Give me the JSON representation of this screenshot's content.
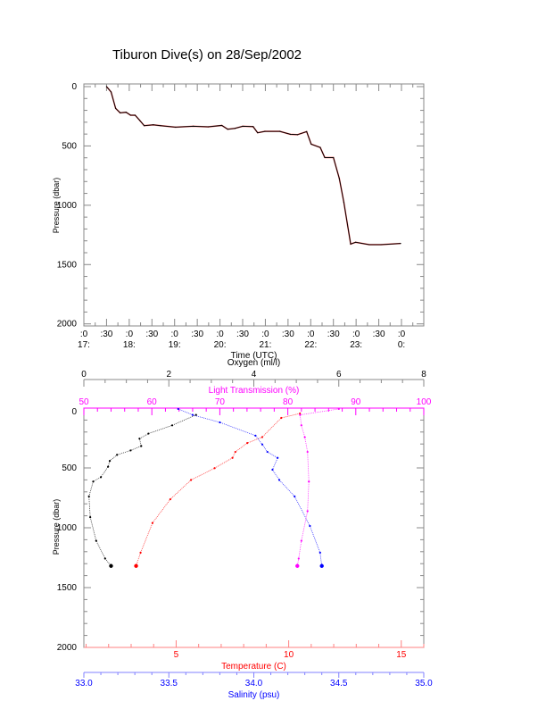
{
  "title": "Tiburon Dive(s) on 28/Sep/2002",
  "chart_data": [
    {
      "type": "line",
      "title": "Tiburon Dive(s) on 28/Sep/2002",
      "xlabel": "Time (UTC)",
      "ylabel": "Pressure (dbar)",
      "xlim_hours_after_1700": [
        0,
        7.5
      ],
      "ylim": [
        2000,
        0
      ],
      "yticks": [
        "0",
        "500",
        "1000",
        "1500",
        "2000"
      ],
      "xticks_minute": [
        ":0",
        ":30",
        ":0",
        ":30",
        ":0",
        ":30",
        ":0",
        ":30",
        ":0",
        ":30",
        ":0",
        ":30",
        ":0",
        ":30",
        ":0"
      ],
      "xticks_hour": [
        "17:",
        "18:",
        "19:",
        "20:",
        "21:",
        "22:",
        "23:",
        "0:"
      ],
      "colors": {
        "line": "#000000",
        "overlay": "#ff0000"
      },
      "series": [
        {
          "name": "Pressure",
          "x_hours": [
            0.5,
            0.6,
            0.7,
            0.8,
            0.93,
            1.03,
            1.13,
            1.23,
            1.33,
            1.53,
            1.69,
            2.02,
            2.41,
            2.74,
            3.04,
            3.17,
            3.33,
            3.5,
            3.73,
            3.83,
            3.99,
            4.32,
            4.55,
            4.71,
            4.91,
            5.01,
            5.21,
            5.31,
            5.5,
            5.63,
            5.73,
            5.88,
            5.99,
            6.29,
            6.55,
            6.98
          ],
          "y": [
            0,
            45,
            183,
            221,
            216,
            241,
            241,
            284,
            329,
            322,
            329,
            342,
            334,
            339,
            327,
            359,
            352,
            334,
            337,
            389,
            377,
            377,
            402,
            405,
            379,
            485,
            513,
            598,
            598,
            774,
            975,
            1327,
            1312,
            1332,
            1332,
            1322
          ]
        }
      ]
    },
    {
      "type": "scatter",
      "ylabel": "Pressure (dbar)",
      "ylim": [
        2000,
        0
      ],
      "yticks": [
        "0",
        "500",
        "1000",
        "1500",
        "2000"
      ],
      "axes": {
        "oxygen": {
          "label": "Oxygen (ml/l)",
          "range": [
            0,
            8
          ],
          "ticks": [
            "0",
            "2",
            "4",
            "6",
            "8"
          ],
          "color": "#000000"
        },
        "light": {
          "label": "Light Transmission (%)",
          "range": [
            50,
            100
          ],
          "ticks": [
            "50",
            "60",
            "70",
            "80",
            "90",
            "100"
          ],
          "color": "#ff00ff"
        },
        "temperature": {
          "label": "Temperature (C)",
          "range": [
            0.9,
            16.0
          ],
          "ticks": [
            "5",
            "10",
            "15"
          ],
          "color": "#ff0000"
        },
        "salinity": {
          "label": "Salinity (psu)",
          "range": [
            33.0,
            35.0
          ],
          "ticks": [
            "33.0",
            "33.5",
            "34.0",
            "34.5",
            "35.0"
          ],
          "color": "#0000ff"
        }
      },
      "series": [
        {
          "name": "Oxygen",
          "axis": "oxygen",
          "color": "#000000",
          "x": [
            2.64,
            2.08,
            1.52,
            1.31,
            1.35,
            1.1,
            0.78,
            0.61,
            0.57,
            0.4,
            0.22,
            0.12,
            0.15,
            0.29,
            0.5,
            0.64
          ],
          "y": [
            57,
            144,
            213,
            255,
            317,
            354,
            391,
            441,
            490,
            577,
            614,
            738,
            911,
            1109,
            1257,
            1319
          ]
        },
        {
          "name": "Temperature",
          "axis": "temperature",
          "color": "#ff0000",
          "x": [
            10.5,
            9.67,
            8.82,
            8.16,
            7.63,
            7.5,
            6.71,
            5.66,
            4.74,
            3.95,
            3.42,
            3.22
          ],
          "y": [
            45,
            82,
            243,
            292,
            366,
            416,
            502,
            601,
            762,
            960,
            1208,
            1319
          ]
        },
        {
          "name": "Salinity",
          "axis": "salinity",
          "color": "#0000ff",
          "x": [
            33.555,
            33.64,
            33.8,
            34.01,
            34.05,
            34.08,
            34.14,
            34.11,
            34.15,
            34.24,
            34.33,
            34.39,
            34.4
          ],
          "y": [
            7,
            57,
            119,
            230,
            304,
            366,
            416,
            515,
            601,
            738,
            985,
            1208,
            1319
          ]
        },
        {
          "name": "Light Transmission",
          "axis": "light",
          "color": "#ff00ff",
          "x": [
            87.5,
            81.8,
            82.0,
            82.5,
            82.9,
            83.1,
            82.9,
            82.0,
            81.6,
            81.4
          ],
          "y": [
            7,
            57,
            144,
            243,
            366,
            614,
            861,
            1109,
            1257,
            1319
          ]
        }
      ]
    }
  ]
}
